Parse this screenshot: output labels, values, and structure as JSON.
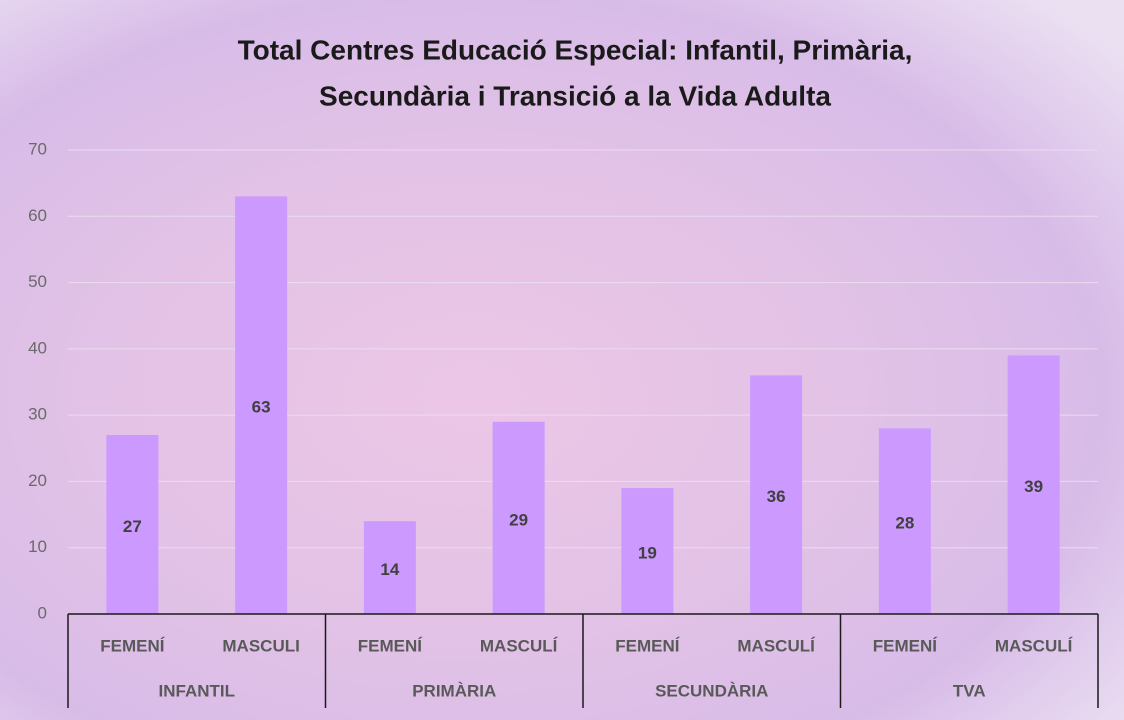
{
  "chart_data": {
    "type": "bar",
    "title": [
      "Total Centres Educació Especial: Infantil, Primària,",
      "Secundària i Transició a la Vida Adulta"
    ],
    "categories": [
      "FEMENÍ",
      "MASCULI",
      "FEMENÍ",
      "MASCULÍ",
      "FEMENÍ",
      "MASCULÍ",
      "FEMENÍ",
      "MASCULÍ"
    ],
    "category_groups": [
      "INFANTIL",
      "PRIMÀRIA",
      "SECUNDÀRIA",
      "TVA"
    ],
    "values": [
      27,
      63,
      14,
      29,
      19,
      36,
      28,
      39
    ],
    "color": "#cc99ff",
    "ylim": [
      0,
      70
    ],
    "yticks": [
      0,
      10,
      20,
      30,
      40,
      50,
      60,
      70
    ],
    "grid": true
  }
}
